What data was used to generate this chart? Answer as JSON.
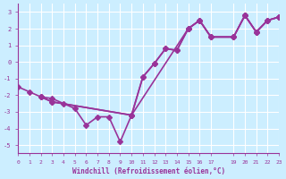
{
  "title": "",
  "xlabel": "Windchill (Refroidissement éolien,°C)",
  "ylabel": "",
  "xlim": [
    0,
    23
  ],
  "ylim": [
    -5.5,
    3.5
  ],
  "yticks": [
    -5,
    -4,
    -3,
    -2,
    -1,
    0,
    1,
    2,
    3
  ],
  "xticks": [
    0,
    1,
    2,
    3,
    4,
    5,
    6,
    7,
    8,
    9,
    10,
    11,
    12,
    13,
    14,
    15,
    16,
    17,
    19,
    20,
    21,
    22,
    23
  ],
  "xtick_labels": [
    "0",
    "1",
    "2",
    "3",
    "4",
    "5",
    "6",
    "7",
    "8",
    "9",
    "10",
    "11",
    "12",
    "13",
    "14",
    "15",
    "16",
    "17",
    "19",
    "20",
    "21",
    "22",
    "23"
  ],
  "background_color": "#cceeff",
  "grid_color": "#ffffff",
  "line_color": "#993399",
  "line_width": 1.2,
  "marker": "D",
  "marker_size": 3,
  "lines": [
    {
      "x": [
        0,
        1,
        2,
        3,
        4,
        5,
        6,
        7,
        8,
        9,
        10,
        11,
        12,
        13,
        14,
        15,
        16,
        17,
        19,
        20,
        21,
        22,
        23
      ],
      "y": [
        -1.5,
        -1.8,
        -2.1,
        -2.2,
        -2.5,
        -2.8,
        -3.8,
        -3.3,
        -3.3,
        -4.8,
        -3.2,
        -0.9,
        -0.1,
        0.8,
        0.7,
        2.0,
        2.5,
        1.5,
        1.5,
        2.8,
        1.8,
        2.5,
        2.7
      ]
    },
    {
      "x": [
        2,
        3,
        10,
        11,
        12,
        13,
        14,
        15,
        16,
        17,
        19,
        20,
        21,
        22,
        23
      ],
      "y": [
        -2.1,
        -2.4,
        -3.2,
        -0.9,
        -0.1,
        0.8,
        0.7,
        2.0,
        2.5,
        1.5,
        1.5,
        2.8,
        1.8,
        2.5,
        2.7
      ]
    },
    {
      "x": [
        2,
        3,
        10,
        15,
        16,
        17,
        19,
        20,
        21,
        22,
        23
      ],
      "y": [
        -2.1,
        -2.4,
        -3.2,
        2.0,
        2.5,
        1.5,
        1.5,
        2.8,
        1.8,
        2.5,
        2.7
      ]
    }
  ]
}
